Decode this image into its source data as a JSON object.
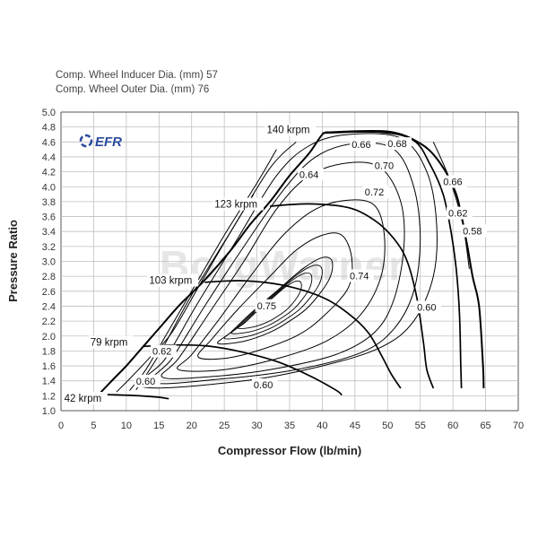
{
  "header": {
    "line1": "Comp. Wheel Inducer Dia. (mm) 57",
    "line2": "Comp. Wheel Outer Dia. (mm) 76"
  },
  "logo": {
    "text": "EFR",
    "color": "#2b4a9e"
  },
  "watermark": {
    "text": "BorgWarner"
  },
  "colors": {
    "grid": "#bfbfbf",
    "line": "#000000"
  },
  "chart_data": {
    "type": "line",
    "title": "",
    "xlabel": "Compressor Flow (lb/min)",
    "ylabel": "Pressure Ratio",
    "xlim": [
      0,
      70
    ],
    "ylim": [
      1.0,
      5.0
    ],
    "xticks": [
      0,
      5,
      10,
      15,
      20,
      25,
      30,
      35,
      40,
      45,
      50,
      55,
      60,
      65,
      70
    ],
    "yticks": [
      1.0,
      1.2,
      1.4,
      1.6,
      1.8,
      2.0,
      2.2,
      2.4,
      2.6,
      2.8,
      3.0,
      3.2,
      3.4,
      3.6,
      3.8,
      4.0,
      4.2,
      4.4,
      4.6,
      4.8,
      5.0
    ],
    "grid": true,
    "series": [
      {
        "name": "surge line",
        "kind": "boundary",
        "points": [
          [
            5.8,
            1.22
          ],
          [
            8,
            1.42
          ],
          [
            10,
            1.6
          ],
          [
            12.5,
            1.85
          ],
          [
            15,
            2.1
          ],
          [
            18,
            2.4
          ],
          [
            22,
            2.75
          ],
          [
            26,
            3.15
          ],
          [
            29,
            3.5
          ],
          [
            32,
            3.8
          ],
          [
            35,
            4.15
          ],
          [
            38,
            4.45
          ],
          [
            40,
            4.7
          ],
          [
            41,
            4.73
          ]
        ]
      },
      {
        "name": "choke line",
        "kind": "boundary",
        "points": [
          [
            41,
            4.73
          ],
          [
            50,
            4.74
          ],
          [
            55,
            4.58
          ],
          [
            58,
            4.32
          ],
          [
            60.5,
            3.9
          ],
          [
            62,
            3.3
          ],
          [
            63,
            2.8
          ],
          [
            64,
            2.4
          ],
          [
            64.6,
            1.6
          ],
          [
            64.7,
            1.3
          ]
        ]
      },
      {
        "name": "140 krpm",
        "kind": "speed",
        "points": [
          [
            40,
            4.72
          ],
          [
            49,
            4.73
          ],
          [
            54,
            4.62
          ],
          [
            56.5,
            4.3
          ],
          [
            58.5,
            3.9
          ],
          [
            59.7,
            3.4
          ],
          [
            60.5,
            2.9
          ],
          [
            61,
            2.3
          ],
          [
            61.2,
            1.6
          ],
          [
            61.3,
            1.3
          ]
        ]
      },
      {
        "name": "123 krpm",
        "kind": "speed",
        "points": [
          [
            32,
            3.74
          ],
          [
            38,
            3.77
          ],
          [
            44,
            3.72
          ],
          [
            48,
            3.55
          ],
          [
            51,
            3.3
          ],
          [
            53,
            3.0
          ],
          [
            54.5,
            2.5
          ],
          [
            55.5,
            1.9
          ],
          [
            56,
            1.55
          ],
          [
            57,
            1.3
          ]
        ]
      },
      {
        "name": "103 krpm",
        "kind": "speed",
        "points": [
          [
            22,
            2.72
          ],
          [
            28,
            2.74
          ],
          [
            34,
            2.68
          ],
          [
            40,
            2.52
          ],
          [
            44,
            2.3
          ],
          [
            47,
            2.05
          ],
          [
            49,
            1.75
          ],
          [
            50.5,
            1.5
          ],
          [
            52,
            1.3
          ]
        ]
      },
      {
        "name": "79 krpm",
        "kind": "speed",
        "points": [
          [
            12.5,
            1.86
          ],
          [
            17,
            1.88
          ],
          [
            22,
            1.87
          ],
          [
            27,
            1.8
          ],
          [
            33,
            1.66
          ],
          [
            38,
            1.47
          ],
          [
            42,
            1.28
          ],
          [
            43,
            1.21
          ]
        ]
      },
      {
        "name": "42 krpm",
        "kind": "speed",
        "points": [
          [
            5.8,
            1.22
          ],
          [
            9,
            1.21
          ],
          [
            12,
            1.2
          ],
          [
            15,
            1.18
          ],
          [
            16.5,
            1.16
          ]
        ]
      }
    ],
    "efficiency_islands": [
      {
        "eff": 0.75,
        "points": [
          [
            24,
            1.9
          ],
          [
            26,
            2.05
          ],
          [
            29,
            2.3
          ],
          [
            33,
            2.6
          ],
          [
            37,
            2.9
          ],
          [
            40,
            3.05
          ],
          [
            41.5,
            3.0
          ],
          [
            41,
            2.75
          ],
          [
            38,
            2.4
          ],
          [
            35,
            2.2
          ],
          [
            32,
            2.05
          ],
          [
            28,
            1.93
          ]
        ]
      },
      {
        "eff": 0.74,
        "points": [
          [
            21,
            1.72
          ],
          [
            23,
            1.95
          ],
          [
            27,
            2.35
          ],
          [
            32,
            2.8
          ],
          [
            36,
            3.15
          ],
          [
            40,
            3.35
          ],
          [
            43,
            3.35
          ],
          [
            44.5,
            3.05
          ],
          [
            44,
            2.65
          ],
          [
            40,
            2.25
          ],
          [
            36,
            2.0
          ],
          [
            30,
            1.8
          ],
          [
            25,
            1.7
          ]
        ]
      },
      {
        "eff": 0.72,
        "points": [
          [
            18,
            1.55
          ],
          [
            20,
            1.75
          ],
          [
            24,
            2.2
          ],
          [
            29,
            2.8
          ],
          [
            34,
            3.35
          ],
          [
            39,
            3.7
          ],
          [
            44,
            3.82
          ],
          [
            48,
            3.75
          ],
          [
            49.5,
            3.35
          ],
          [
            49,
            2.8
          ],
          [
            46,
            2.3
          ],
          [
            41,
            1.95
          ],
          [
            34,
            1.72
          ],
          [
            25,
            1.55
          ]
        ]
      },
      {
        "eff": 0.7,
        "points": [
          [
            15.5,
            1.45
          ],
          [
            18,
            1.7
          ],
          [
            23,
            2.35
          ],
          [
            28,
            3.0
          ],
          [
            33,
            3.7
          ],
          [
            38,
            4.15
          ],
          [
            44,
            4.32
          ],
          [
            49,
            4.25
          ],
          [
            52,
            3.8
          ],
          [
            52.5,
            3.2
          ],
          [
            51,
            2.5
          ],
          [
            48,
            2.05
          ],
          [
            42,
            1.75
          ],
          [
            32,
            1.55
          ],
          [
            22,
            1.45
          ]
        ]
      },
      {
        "eff": 0.68,
        "points": [
          [
            14,
            1.38
          ],
          [
            17,
            1.7
          ],
          [
            22,
            2.4
          ],
          [
            28,
            3.2
          ],
          [
            34,
            3.95
          ],
          [
            39,
            4.4
          ],
          [
            45,
            4.58
          ],
          [
            51,
            4.5
          ],
          [
            54,
            4.0
          ],
          [
            55,
            3.3
          ],
          [
            54,
            2.6
          ],
          [
            51,
            2.1
          ],
          [
            46,
            1.78
          ],
          [
            36,
            1.55
          ],
          [
            24,
            1.42
          ]
        ]
      },
      {
        "eff": 0.66,
        "points": [
          [
            12.5,
            1.32
          ],
          [
            16,
            1.7
          ],
          [
            21,
            2.45
          ],
          [
            27,
            3.3
          ],
          [
            33,
            4.15
          ],
          [
            38,
            4.55
          ],
          [
            44,
            4.7
          ],
          [
            52,
            4.65
          ],
          [
            56,
            4.2
          ],
          [
            57.5,
            3.5
          ],
          [
            57,
            2.8
          ],
          [
            54,
            2.2
          ],
          [
            49,
            1.85
          ],
          [
            40,
            1.6
          ],
          [
            28,
            1.4
          ]
        ]
      },
      {
        "eff": 0.64,
        "points": [
          [
            11.5,
            1.28
          ],
          [
            15,
            1.75
          ],
          [
            20,
            2.55
          ],
          [
            26,
            3.4
          ],
          [
            32,
            4.25
          ],
          [
            36,
            4.6
          ]
        ]
      },
      {
        "eff": 0.62,
        "points": [
          [
            10.5,
            1.27
          ],
          [
            13,
            1.55
          ],
          [
            16,
            2.0
          ],
          [
            20,
            2.6
          ],
          [
            25,
            3.35
          ],
          [
            30,
            4.05
          ],
          [
            33,
            4.5
          ]
        ]
      },
      {
        "eff": 0.6,
        "points": [
          [
            8.5,
            1.25
          ],
          [
            11,
            1.47
          ],
          [
            14,
            1.75
          ],
          [
            17,
            2.05
          ],
          [
            21,
            2.65
          ],
          [
            26,
            3.4
          ],
          [
            29.5,
            3.9
          ]
        ]
      },
      {
        "eff": 0.58,
        "points": [
          [
            57,
            4.6
          ],
          [
            59.5,
            4.1
          ],
          [
            61.5,
            3.5
          ],
          [
            62.5,
            2.9
          ]
        ]
      }
    ],
    "labels": [
      {
        "text": "140 krpm",
        "x": 31.5,
        "y": 4.72
      },
      {
        "text": "123 krpm",
        "x": 23.5,
        "y": 3.72
      },
      {
        "text": "103 krpm",
        "x": 13.5,
        "y": 2.7
      },
      {
        "text": "79 krpm",
        "x": 4.5,
        "y": 1.87
      },
      {
        "text": "42 krpm",
        "x": 0.5,
        "y": 1.12
      },
      {
        "text": "0.66",
        "x": 44.5,
        "y": 4.52
      },
      {
        "text": "0.68",
        "x": 50,
        "y": 4.53
      },
      {
        "text": "0.70",
        "x": 48,
        "y": 4.24
      },
      {
        "text": "0.64",
        "x": 36.5,
        "y": 4.12
      },
      {
        "text": "0.72",
        "x": 46.5,
        "y": 3.88
      },
      {
        "text": "0.66",
        "x": 58.5,
        "y": 4.02
      },
      {
        "text": "0.62",
        "x": 59.3,
        "y": 3.6
      },
      {
        "text": "0.58",
        "x": 61.5,
        "y": 3.36
      },
      {
        "text": "0.74",
        "x": 44.2,
        "y": 2.76
      },
      {
        "text": "0.75",
        "x": 30,
        "y": 2.36
      },
      {
        "text": "0.60",
        "x": 54.5,
        "y": 2.34
      },
      {
        "text": "0.62",
        "x": 14,
        "y": 1.75
      },
      {
        "text": "0.60",
        "x": 11.5,
        "y": 1.35
      },
      {
        "text": "0.60",
        "x": 29.5,
        "y": 1.3
      }
    ]
  }
}
